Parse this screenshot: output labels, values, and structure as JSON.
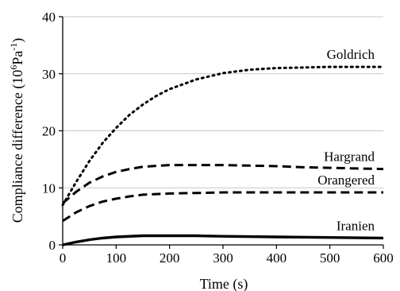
{
  "chart_data": {
    "type": "line",
    "xlabel": "Time (s)",
    "ylabel_parts": {
      "prefix": "Compliance difference (10",
      "exp1": "6",
      "mid": "Pa",
      "exp2": "-1",
      "suffix": ")"
    },
    "xlim": [
      0,
      600
    ],
    "ylim": [
      0,
      40
    ],
    "xticks": [
      0,
      100,
      200,
      300,
      400,
      500,
      600
    ],
    "yticks": [
      0,
      10,
      20,
      30,
      40
    ],
    "grid": "horizontal",
    "series": [
      {
        "name": "Goldrich",
        "style": "dotted",
        "x": [
          0,
          25,
          50,
          75,
          100,
          125,
          150,
          175,
          200,
          250,
          300,
          350,
          400,
          450,
          500,
          550,
          600
        ],
        "y": [
          7.0,
          11.0,
          14.7,
          17.9,
          20.5,
          22.8,
          24.6,
          26.1,
          27.3,
          29.0,
          30.1,
          30.7,
          31.0,
          31.1,
          31.2,
          31.2,
          31.2
        ]
      },
      {
        "name": "Hargrand",
        "style": "dashed",
        "x": [
          0,
          25,
          50,
          75,
          100,
          125,
          150,
          200,
          250,
          300,
          350,
          400,
          450,
          500,
          550,
          600
        ],
        "y": [
          7.3,
          9.3,
          10.9,
          12.0,
          12.8,
          13.3,
          13.7,
          14.0,
          14.0,
          14.0,
          13.9,
          13.8,
          13.6,
          13.5,
          13.4,
          13.3
        ]
      },
      {
        "name": "Orangered",
        "style": "dashed",
        "x": [
          0,
          25,
          50,
          75,
          100,
          125,
          150,
          200,
          250,
          300,
          350,
          400,
          450,
          500,
          550,
          600
        ],
        "y": [
          4.2,
          5.7,
          6.8,
          7.6,
          8.1,
          8.5,
          8.8,
          9.0,
          9.1,
          9.2,
          9.2,
          9.2,
          9.2,
          9.2,
          9.2,
          9.2
        ]
      },
      {
        "name": "Iranien",
        "style": "solid",
        "x": [
          0,
          25,
          50,
          75,
          100,
          150,
          200,
          250,
          300,
          400,
          500,
          600
        ],
        "y": [
          0.0,
          0.5,
          0.9,
          1.2,
          1.4,
          1.6,
          1.6,
          1.6,
          1.5,
          1.4,
          1.3,
          1.2
        ]
      }
    ]
  }
}
